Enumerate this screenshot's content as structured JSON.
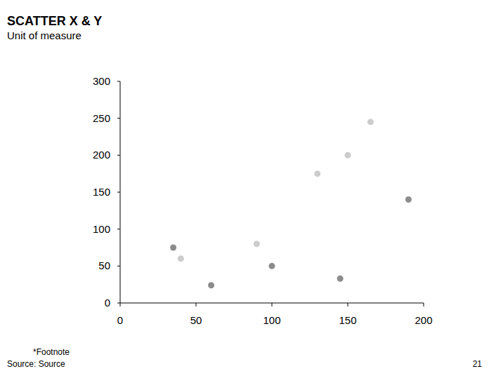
{
  "chart_data": {
    "type": "scatter",
    "title": "SCATTER X & Y",
    "subtitle": "Unit of measure",
    "footnote": "*Footnote",
    "source": "Source: Source",
    "page_number": 21,
    "series": [
      {
        "color": "#8c8c8c",
        "marker": "circle",
        "x": [
          35,
          60,
          100,
          145,
          190
        ],
        "values": [
          75,
          24,
          50,
          33,
          140
        ]
      },
      {
        "color": "#cccccc",
        "marker": "circle",
        "x": [
          40,
          90,
          130,
          150,
          165
        ],
        "values": [
          60,
          80,
          175,
          200,
          245
        ]
      }
    ],
    "xlim": [
      0,
      200
    ],
    "xticks": [
      0,
      50,
      100,
      150,
      200
    ],
    "ylim": [
      0,
      300
    ],
    "yticks": [
      0,
      50,
      100,
      150,
      200,
      250,
      300
    ],
    "grid": false
  }
}
